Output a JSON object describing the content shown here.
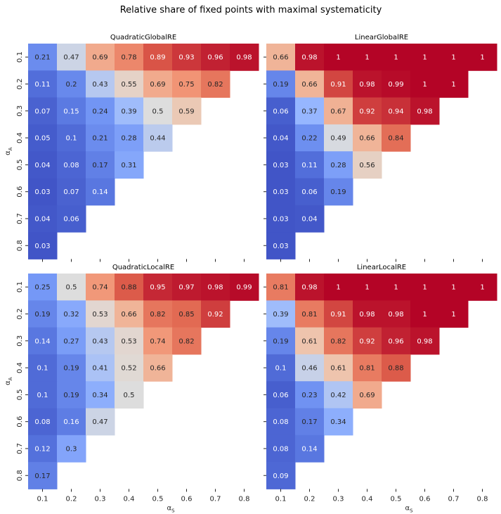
{
  "figure": {
    "title": "Relative share of fixed points with maximal systematicity"
  },
  "chart_data": [
    {
      "type": "heatmap",
      "title": "QuadraticGlobalRE",
      "xlabel": "α_S",
      "ylabel": "α_A",
      "x_ticks": [
        "0.1",
        "0.2",
        "0.3",
        "0.4",
        "0.5",
        "0.6",
        "0.7",
        "0.8"
      ],
      "y_ticks": [
        "0.1",
        "0.2",
        "0.3",
        "0.4",
        "0.5",
        "0.6",
        "0.7",
        "0.8"
      ],
      "colormap": "coolwarm",
      "vmin": 0,
      "vmax": 1,
      "values": [
        [
          0.21,
          0.47,
          0.69,
          0.78,
          0.89,
          0.93,
          0.96,
          0.98
        ],
        [
          0.11,
          0.2,
          0.43,
          0.55,
          0.69,
          0.75,
          0.82
        ],
        [
          0.07,
          0.15,
          0.24,
          0.39,
          0.5,
          0.59
        ],
        [
          0.05,
          0.1,
          0.21,
          0.28,
          0.44
        ],
        [
          0.04,
          0.08,
          0.17,
          0.31
        ],
        [
          0.03,
          0.07,
          0.14
        ],
        [
          0.04,
          0.06
        ],
        [
          0.03
        ]
      ]
    },
    {
      "type": "heatmap",
      "title": "LinearGlobalRE",
      "xlabel": "α_S",
      "ylabel": "α_A",
      "x_ticks": [
        "0.1",
        "0.2",
        "0.3",
        "0.4",
        "0.5",
        "0.6",
        "0.7",
        "0.8"
      ],
      "y_ticks": [
        "0.1",
        "0.2",
        "0.3",
        "0.4",
        "0.5",
        "0.6",
        "0.7",
        "0.8"
      ],
      "colormap": "coolwarm",
      "vmin": 0,
      "vmax": 1,
      "values": [
        [
          0.66,
          0.98,
          1,
          1,
          1,
          1,
          1,
          1
        ],
        [
          0.19,
          0.66,
          0.91,
          0.98,
          0.99,
          1,
          1
        ],
        [
          0.06,
          0.37,
          0.67,
          0.92,
          0.94,
          0.98
        ],
        [
          0.04,
          0.22,
          0.49,
          0.66,
          0.84
        ],
        [
          0.03,
          0.11,
          0.28,
          0.56
        ],
        [
          0.03,
          0.06,
          0.19
        ],
        [
          0.03,
          0.04
        ],
        [
          0.03
        ]
      ]
    },
    {
      "type": "heatmap",
      "title": "QuadraticLocalRE",
      "xlabel": "α_S",
      "ylabel": "α_A",
      "x_ticks": [
        "0.1",
        "0.2",
        "0.3",
        "0.4",
        "0.5",
        "0.6",
        "0.7",
        "0.8"
      ],
      "y_ticks": [
        "0.1",
        "0.2",
        "0.3",
        "0.4",
        "0.5",
        "0.6",
        "0.7",
        "0.8"
      ],
      "colormap": "coolwarm",
      "vmin": 0,
      "vmax": 1,
      "values": [
        [
          0.25,
          0.5,
          0.74,
          0.88,
          0.95,
          0.97,
          0.98,
          0.99
        ],
        [
          0.19,
          0.32,
          0.53,
          0.66,
          0.82,
          0.85,
          0.92
        ],
        [
          0.14,
          0.27,
          0.43,
          0.53,
          0.74,
          0.82
        ],
        [
          0.1,
          0.19,
          0.41,
          0.52,
          0.66
        ],
        [
          0.1,
          0.19,
          0.34,
          0.5
        ],
        [
          0.08,
          0.16,
          0.47
        ],
        [
          0.12,
          0.3
        ],
        [
          0.17
        ]
      ]
    },
    {
      "type": "heatmap",
      "title": "LinearLocalRE",
      "xlabel": "α_S",
      "ylabel": "α_A",
      "x_ticks": [
        "0.1",
        "0.2",
        "0.3",
        "0.4",
        "0.5",
        "0.6",
        "0.7",
        "0.8"
      ],
      "y_ticks": [
        "0.1",
        "0.2",
        "0.3",
        "0.4",
        "0.5",
        "0.6",
        "0.7",
        "0.8"
      ],
      "colormap": "coolwarm",
      "vmin": 0,
      "vmax": 1,
      "values": [
        [
          0.81,
          0.98,
          1,
          1,
          1,
          1,
          1,
          1
        ],
        [
          0.39,
          0.81,
          0.91,
          0.98,
          0.98,
          1,
          1
        ],
        [
          0.19,
          0.61,
          0.82,
          0.92,
          0.96,
          0.98
        ],
        [
          0.1,
          0.46,
          0.61,
          0.81,
          0.88
        ],
        [
          0.06,
          0.23,
          0.42,
          0.69
        ],
        [
          0.08,
          0.17,
          0.34
        ],
        [
          0.08,
          0.14
        ],
        [
          0.09
        ]
      ]
    }
  ]
}
